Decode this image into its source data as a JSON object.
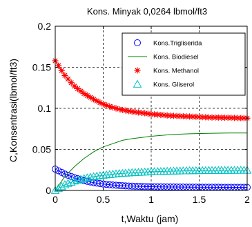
{
  "chart_data": {
    "type": "line",
    "title": "Kons. Minyak 0,0264 lbmol/ft3",
    "xlabel": "t,Waktu (jam)",
    "ylabel": "C,Konsentrasi(lbmol/ft3)",
    "xlim": [
      0,
      2
    ],
    "ylim": [
      0,
      0.2
    ],
    "xticks": [
      "0",
      "0.5",
      "1",
      "1.5",
      "2"
    ],
    "yticks": [
      "0",
      "0.05",
      "0.1",
      "0.15",
      "0.2"
    ],
    "grid": true,
    "legend_position": "top-right",
    "series": [
      {
        "name": "Kons.Trigliserida",
        "color": "#0000ff",
        "marker": "circle",
        "x": [
          0.0,
          0.1,
          0.2,
          0.3,
          0.4,
          0.5,
          0.6,
          0.7,
          0.8,
          1.0,
          1.2,
          1.4,
          1.6,
          1.8,
          2.0
        ],
        "y": [
          0.026,
          0.02,
          0.0155,
          0.012,
          0.0095,
          0.0078,
          0.0066,
          0.0058,
          0.0052,
          0.0045,
          0.0042,
          0.004,
          0.0039,
          0.0038,
          0.0038
        ]
      },
      {
        "name": "Kons. Biodiesel",
        "color": "#008000",
        "marker": "none",
        "x": [
          0.0,
          0.1,
          0.2,
          0.3,
          0.4,
          0.5,
          0.6,
          0.7,
          0.8,
          1.0,
          1.2,
          1.4,
          1.6,
          1.8,
          2.0
        ],
        "y": [
          0.0,
          0.017,
          0.029,
          0.039,
          0.047,
          0.053,
          0.057,
          0.061,
          0.063,
          0.066,
          0.068,
          0.069,
          0.0695,
          0.07,
          0.07
        ]
      },
      {
        "name": "Kons. Methanol",
        "color": "#ff0000",
        "marker": "star",
        "x": [
          0.0,
          0.1,
          0.2,
          0.3,
          0.4,
          0.5,
          0.6,
          0.7,
          0.8,
          1.0,
          1.2,
          1.4,
          1.6,
          1.8,
          2.0
        ],
        "y": [
          0.158,
          0.14,
          0.127,
          0.118,
          0.111,
          0.105,
          0.101,
          0.098,
          0.096,
          0.093,
          0.091,
          0.09,
          0.089,
          0.0885,
          0.088
        ]
      },
      {
        "name": "Kons. Gliserol",
        "color": "#00c0c0",
        "marker": "triangle",
        "x": [
          0.0,
          0.1,
          0.2,
          0.3,
          0.4,
          0.5,
          0.6,
          0.7,
          0.8,
          1.0,
          1.2,
          1.4,
          1.6,
          1.8,
          2.0
        ],
        "y": [
          0.0,
          0.007,
          0.0115,
          0.0145,
          0.0168,
          0.0185,
          0.0198,
          0.0208,
          0.0216,
          0.0228,
          0.0235,
          0.024,
          0.0243,
          0.0245,
          0.0246
        ]
      }
    ]
  }
}
